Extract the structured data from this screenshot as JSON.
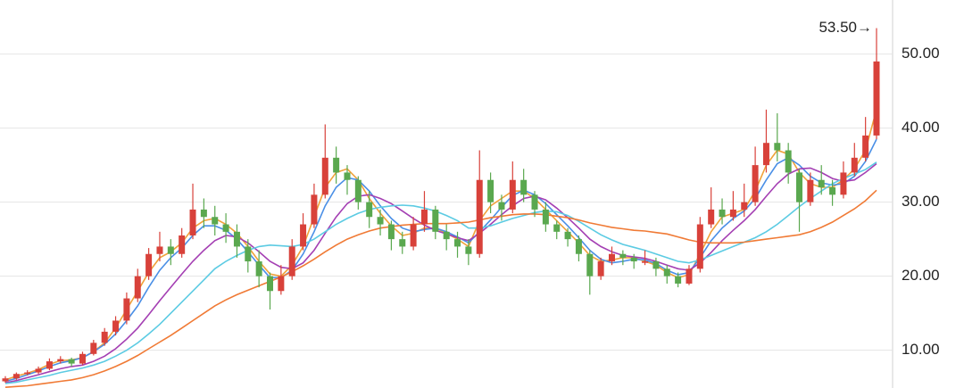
{
  "chart_data": {
    "type": "candlestick",
    "ylim": [
      4.9,
      57.3
    ],
    "yticks": [
      {
        "value": 10,
        "label": "10.00"
      },
      {
        "value": 20,
        "label": "20.00"
      },
      {
        "value": 30,
        "label": "30.00"
      },
      {
        "value": 40,
        "label": "40.00"
      },
      {
        "value": 50,
        "label": "50.00"
      }
    ],
    "grid": true,
    "up_color": "#d8413a",
    "down_color": "#5aa84f",
    "open": [
      5.8,
      6.2,
      6.8,
      7.0,
      7.5,
      8.5,
      8.8,
      8.2,
      9.5,
      11.0,
      12.5,
      14.0,
      17.0,
      20.0,
      23.0,
      24.0,
      23.0,
      25.5,
      29.0,
      28.0,
      27.0,
      26.0,
      24.0,
      22.0,
      20.0,
      18.0,
      20.0,
      24.0,
      27.0,
      31.0,
      36.0,
      34.0,
      33.0,
      30.0,
      28.0,
      27.0,
      25.0,
      24.0,
      27.0,
      29.0,
      26.0,
      25.0,
      24.0,
      23.0,
      33.0,
      30.0,
      29.0,
      33.0,
      31.0,
      29.0,
      27.0,
      26.0,
      25.0,
      23.0,
      20.0,
      22.0,
      23.0,
      22.5,
      21.8,
      22.0,
      21.0,
      20.0,
      19.0,
      21.0,
      27.0,
      29.0,
      28.0,
      29.0,
      30.0,
      35.0,
      38.0,
      37.0,
      34.0,
      30.0,
      33.0,
      32.0,
      31.0,
      34.0,
      36.0,
      39.0
    ],
    "high": [
      6.5,
      7.0,
      7.3,
      7.8,
      8.9,
      9.2,
      9.0,
      9.8,
      11.4,
      13.0,
      14.6,
      17.8,
      21.0,
      23.8,
      26.0,
      25.0,
      26.5,
      32.5,
      30.5,
      29.5,
      28.5,
      27.0,
      25.0,
      23.5,
      20.5,
      21.5,
      25.0,
      28.5,
      32.5,
      40.5,
      37.5,
      35.0,
      33.5,
      31.5,
      29.0,
      27.5,
      26.0,
      28.0,
      31.5,
      29.5,
      27.0,
      26.0,
      25.0,
      37.0,
      34.0,
      31.0,
      35.5,
      34.5,
      31.5,
      30.0,
      27.5,
      26.5,
      25.5,
      23.5,
      22.5,
      24.0,
      23.5,
      23.0,
      23.5,
      22.5,
      21.5,
      20.5,
      21.5,
      28.0,
      32.0,
      30.5,
      31.5,
      32.5,
      37.5,
      42.5,
      42.0,
      38.0,
      34.5,
      34.0,
      35.0,
      33.0,
      35.5,
      38.0,
      41.5,
      53.5
    ],
    "low": [
      5.6,
      6.0,
      6.6,
      6.8,
      7.3,
      8.2,
      7.8,
      8.0,
      9.3,
      10.6,
      12.0,
      13.5,
      16.5,
      19.5,
      22.0,
      21.5,
      22.5,
      25.0,
      26.5,
      25.5,
      24.5,
      22.5,
      20.5,
      18.5,
      15.5,
      17.5,
      19.5,
      23.5,
      26.5,
      30.5,
      32.5,
      31.0,
      29.0,
      26.5,
      25.5,
      23.5,
      23.0,
      23.5,
      26.0,
      25.0,
      23.5,
      22.5,
      21.5,
      22.5,
      28.5,
      27.5,
      28.5,
      30.0,
      28.0,
      26.0,
      25.0,
      24.0,
      22.0,
      17.5,
      19.5,
      21.5,
      21.5,
      21.0,
      21.5,
      20.0,
      19.0,
      18.5,
      18.8,
      20.5,
      26.5,
      27.0,
      27.5,
      28.0,
      29.5,
      34.0,
      35.5,
      32.5,
      26.0,
      29.5,
      31.0,
      29.5,
      30.5,
      33.5,
      35.5,
      38.5
    ],
    "close": [
      6.2,
      6.8,
      7.0,
      7.5,
      8.5,
      8.8,
      8.2,
      9.5,
      11.0,
      12.5,
      14.0,
      17.0,
      20.0,
      23.0,
      24.0,
      23.0,
      25.5,
      29.0,
      28.0,
      27.0,
      26.0,
      24.0,
      22.0,
      20.0,
      18.0,
      20.0,
      24.0,
      27.0,
      31.0,
      36.0,
      34.0,
      33.0,
      30.0,
      28.0,
      27.0,
      25.0,
      24.0,
      27.0,
      29.0,
      26.0,
      25.0,
      24.0,
      23.0,
      33.0,
      30.0,
      29.0,
      33.0,
      31.0,
      29.0,
      27.0,
      26.0,
      25.0,
      23.0,
      20.0,
      22.0,
      23.0,
      22.5,
      22.0,
      22.0,
      21.0,
      20.0,
      19.0,
      21.0,
      27.0,
      29.0,
      28.0,
      29.0,
      30.0,
      35.0,
      38.0,
      37.0,
      34.0,
      30.0,
      33.0,
      32.0,
      31.0,
      34.0,
      36.0,
      39.0,
      49.0
    ],
    "series": [
      {
        "color": "#f0a23a",
        "values": [
          6.0,
          6.5,
          6.9,
          7.4,
          8.1,
          8.6,
          8.7,
          9.0,
          9.8,
          11.0,
          13.0,
          15.5,
          18.0,
          20.5,
          22.5,
          23.3,
          24.5,
          26.5,
          27.5,
          27.8,
          27.0,
          25.8,
          24.0,
          22.0,
          20.3,
          20.0,
          21.5,
          24.0,
          28.0,
          32.0,
          34.0,
          34.5,
          33.0,
          30.5,
          28.5,
          26.8,
          25.5,
          25.8,
          26.5,
          26.5,
          25.8,
          25.0,
          24.0,
          27.5,
          29.5,
          30.5,
          31.5,
          31.5,
          30.5,
          29.0,
          27.5,
          26.0,
          24.5,
          22.8,
          22.0,
          22.2,
          22.5,
          22.5,
          22.0,
          21.5,
          20.5,
          19.8,
          20.2,
          23.0,
          26.0,
          28.0,
          28.5,
          29.0,
          31.5,
          35.0,
          37.0,
          36.5,
          34.0,
          32.5,
          32.0,
          32.0,
          33.0,
          34.5,
          37.0,
          42.5
        ]
      },
      {
        "color": "#4a8fe6",
        "values": [
          5.8,
          6.2,
          6.7,
          7.2,
          7.8,
          8.3,
          8.6,
          9.0,
          9.8,
          10.8,
          12.2,
          14.0,
          16.0,
          18.5,
          20.8,
          22.5,
          23.8,
          25.5,
          26.8,
          26.8,
          26.2,
          25.0,
          23.3,
          21.5,
          19.8,
          19.8,
          20.8,
          23.0,
          26.0,
          29.5,
          32.0,
          33.3,
          33.0,
          31.5,
          29.5,
          27.8,
          26.5,
          26.0,
          26.3,
          26.5,
          26.0,
          25.3,
          24.5,
          26.0,
          27.6,
          29.3,
          30.9,
          31.6,
          31.0,
          29.8,
          28.3,
          26.8,
          25.2,
          23.5,
          22.3,
          21.8,
          22.0,
          22.3,
          22.2,
          21.7,
          20.8,
          20.2,
          20.5,
          22.5,
          24.8,
          26.5,
          27.8,
          28.8,
          30.5,
          33.0,
          35.2,
          36.0,
          35.0,
          33.5,
          32.6,
          32.3,
          32.5,
          33.5,
          35.5,
          38.5
        ]
      },
      {
        "color": "#a43fb3",
        "values": [
          5.6,
          5.9,
          6.3,
          6.7,
          7.1,
          7.5,
          7.8,
          8.0,
          8.5,
          9.2,
          10.2,
          11.5,
          13.0,
          14.8,
          16.7,
          18.5,
          20.3,
          22.0,
          23.5,
          24.8,
          25.5,
          25.3,
          24.5,
          23.3,
          22.0,
          21.2,
          21.0,
          21.8,
          23.5,
          25.8,
          28.0,
          29.8,
          30.8,
          31.0,
          30.5,
          29.8,
          28.8,
          27.8,
          26.9,
          26.2,
          25.7,
          25.2,
          24.8,
          25.8,
          27.0,
          28.3,
          29.5,
          30.5,
          30.8,
          30.3,
          29.2,
          27.9,
          26.5,
          25.0,
          24.0,
          23.3,
          22.8,
          22.6,
          22.4,
          22.0,
          21.5,
          21.0,
          20.8,
          21.8,
          23.2,
          24.8,
          26.2,
          27.5,
          29.0,
          30.8,
          32.5,
          33.8,
          34.5,
          34.6,
          34.0,
          33.2,
          32.8,
          33.0,
          34.0,
          35.2
        ]
      },
      {
        "color": "#5ccbe3",
        "values": [
          5.5,
          5.7,
          6.0,
          6.3,
          6.6,
          7.0,
          7.3,
          7.6,
          8.0,
          8.5,
          9.2,
          10.0,
          11.0,
          12.2,
          13.5,
          15.0,
          16.5,
          18.0,
          19.5,
          21.0,
          22.0,
          22.8,
          23.5,
          24.0,
          24.2,
          24.1,
          24.0,
          24.3,
          25.0,
          26.0,
          27.0,
          27.8,
          28.5,
          29.0,
          29.3,
          29.5,
          29.6,
          29.5,
          29.2,
          28.8,
          28.2,
          27.5,
          26.5,
          26.5,
          26.8,
          27.3,
          27.8,
          28.2,
          28.6,
          28.8,
          28.7,
          28.2,
          27.4,
          26.5,
          25.6,
          24.9,
          24.3,
          23.9,
          23.5,
          23.0,
          22.5,
          22.0,
          21.8,
          22.2,
          22.8,
          23.4,
          24.0,
          24.6,
          25.2,
          26.0,
          27.0,
          28.2,
          29.4,
          30.5,
          31.5,
          32.5,
          33.2,
          33.8,
          34.4,
          35.4
        ]
      },
      {
        "color": "#f07a35",
        "values": [
          5.0,
          5.1,
          5.2,
          5.4,
          5.6,
          5.8,
          6.0,
          6.3,
          6.7,
          7.2,
          7.8,
          8.5,
          9.3,
          10.2,
          11.1,
          12.0,
          13.0,
          14.0,
          15.0,
          16.0,
          16.8,
          17.5,
          18.1,
          18.7,
          19.3,
          19.9,
          20.6,
          21.4,
          22.3,
          23.3,
          24.2,
          25.0,
          25.6,
          26.1,
          26.5,
          26.7,
          26.9,
          27.0,
          27.1,
          27.1,
          27.1,
          27.2,
          27.3,
          27.6,
          27.9,
          28.1,
          28.3,
          28.4,
          28.4,
          28.3,
          28.1,
          27.9,
          27.6,
          27.2,
          26.9,
          26.6,
          26.4,
          26.2,
          26.1,
          25.9,
          25.7,
          25.3,
          24.9,
          24.6,
          24.5,
          24.5,
          24.5,
          24.6,
          24.8,
          25.0,
          25.2,
          25.4,
          25.6,
          26.0,
          26.6,
          27.3,
          28.2,
          29.1,
          30.2,
          31.6
        ]
      }
    ],
    "annotation": {
      "text": "53.50→"
    }
  }
}
